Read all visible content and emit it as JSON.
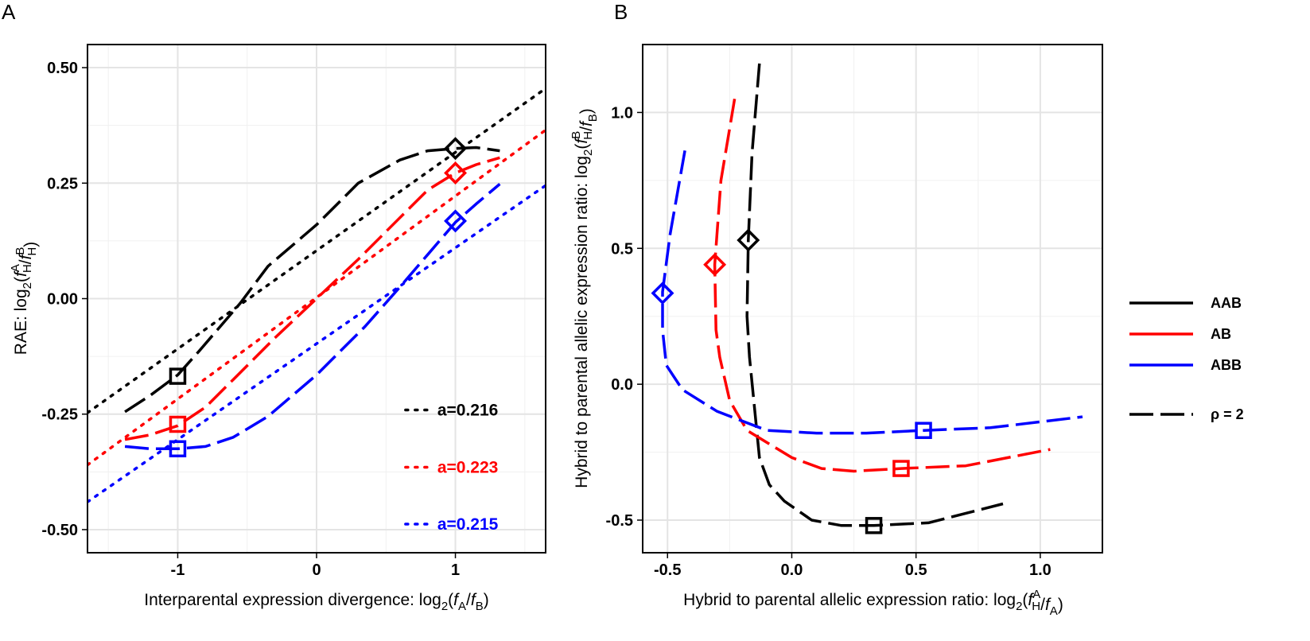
{
  "chart_data": [
    {
      "panel": "A",
      "type": "line",
      "xlabel": "Interparental expression divergence: log2(fA/fB)",
      "ylabel": "RAE: log2(fHA/fHB)",
      "xlim": [
        -1.65,
        1.65
      ],
      "ylim": [
        -0.55,
        0.55
      ],
      "xticks": [
        -1,
        0,
        1
      ],
      "xtick_labels": [
        "-1",
        "0",
        "1"
      ],
      "yticks": [
        -0.5,
        -0.25,
        0,
        0.25,
        0.5
      ],
      "ytick_labels": [
        "-0.50",
        "-0.25",
        "0.00",
        "0.25",
        "0.50"
      ],
      "grid": true,
      "series": [
        {
          "name": "AAB",
          "color": "#000000",
          "style": "dashed",
          "x": [
            -1.38,
            -1.2,
            -1.0,
            -0.85,
            -0.55,
            -0.35,
            0.0,
            0.3,
            0.6,
            0.8,
            1.0,
            1.15,
            1.32
          ],
          "y": [
            -0.245,
            -0.21,
            -0.165,
            -0.115,
            -0.01,
            0.07,
            0.16,
            0.25,
            0.3,
            0.32,
            0.325,
            0.327,
            0.32
          ]
        },
        {
          "name": "AB",
          "color": "#ff0000",
          "style": "dashed",
          "x": [
            -1.38,
            -1.2,
            -1.0,
            -0.8,
            -0.6,
            -0.3,
            0.0,
            0.3,
            0.6,
            0.8,
            1.0,
            1.15,
            1.32
          ],
          "y": [
            -0.305,
            -0.295,
            -0.275,
            -0.235,
            -0.175,
            -0.085,
            0.0,
            0.085,
            0.175,
            0.235,
            0.272,
            0.29,
            0.305
          ]
        },
        {
          "name": "ABB",
          "color": "#0000ff",
          "style": "dashed",
          "x": [
            -1.38,
            -1.2,
            -1.0,
            -0.8,
            -0.6,
            -0.35,
            0.0,
            0.35,
            0.6,
            0.8,
            1.0,
            1.15,
            1.32
          ],
          "y": [
            -0.32,
            -0.325,
            -0.325,
            -0.32,
            -0.3,
            -0.255,
            -0.165,
            -0.06,
            0.025,
            0.095,
            0.165,
            0.205,
            0.248
          ]
        },
        {
          "name": "a=0.216",
          "color": "#000000",
          "style": "dotted",
          "x": [
            -1.65,
            1.65
          ],
          "y": [
            -0.247,
            0.455
          ]
        },
        {
          "name": "a=0.223",
          "color": "#ff0000",
          "style": "dotted",
          "x": [
            -1.65,
            1.65
          ],
          "y": [
            -0.36,
            0.365
          ]
        },
        {
          "name": "a=0.215",
          "color": "#0000ff",
          "style": "dotted",
          "x": [
            -1.65,
            1.65
          ],
          "y": [
            -0.44,
            0.245
          ]
        }
      ],
      "markers": [
        {
          "shape": "square",
          "color": "#000000",
          "x": -1.0,
          "y": -0.168
        },
        {
          "shape": "square",
          "color": "#ff0000",
          "x": -1.0,
          "y": -0.272
        },
        {
          "shape": "square",
          "color": "#0000ff",
          "x": -1.0,
          "y": -0.325
        },
        {
          "shape": "diamond",
          "color": "#000000",
          "x": 1.0,
          "y": 0.325
        },
        {
          "shape": "diamond",
          "color": "#ff0000",
          "x": 1.0,
          "y": 0.272
        },
        {
          "shape": "diamond",
          "color": "#0000ff",
          "x": 1.0,
          "y": 0.168
        }
      ],
      "annotations": [
        {
          "text": "a=0.216",
          "color": "#000000",
          "x": 0.87,
          "y": -0.253
        },
        {
          "text": "a=0.223",
          "color": "#ff0000",
          "x": 0.87,
          "y": -0.377
        },
        {
          "text": "a=0.215",
          "color": "#0000ff",
          "x": 0.87,
          "y": -0.5
        }
      ]
    },
    {
      "panel": "B",
      "type": "line",
      "xlabel": "Hybrid to parental allelic expression ratio: log2(fHA/fA)",
      "ylabel": "Hybrid to parental allelic expression ratio: log2(fHB/fB)",
      "xlim": [
        -0.6,
        1.25
      ],
      "ylim": [
        -0.62,
        1.25
      ],
      "xticks": [
        -0.5,
        0,
        0.5,
        1.0
      ],
      "xtick_labels": [
        "-0.5",
        "0.0",
        "0.5",
        "1.0"
      ],
      "yticks": [
        -0.5,
        0,
        0.5,
        1.0
      ],
      "ytick_labels": [
        "-0.5",
        "0.0",
        "0.5",
        "1.0"
      ],
      "grid": true,
      "series": [
        {
          "name": "AAB",
          "color": "#000000",
          "style": "dashed",
          "x": [
            -0.13,
            -0.16,
            -0.175,
            -0.18,
            -0.17,
            -0.13,
            -0.09,
            -0.03,
            0.08,
            0.2,
            0.33,
            0.55,
            0.85
          ],
          "y": [
            1.18,
            0.85,
            0.53,
            0.25,
            0.1,
            -0.27,
            -0.37,
            -0.43,
            -0.5,
            -0.52,
            -0.52,
            -0.51,
            -0.44
          ]
        },
        {
          "name": "AB",
          "color": "#ff0000",
          "style": "dashed",
          "x": [
            -0.23,
            -0.285,
            -0.31,
            -0.305,
            -0.29,
            -0.25,
            -0.18,
            0.0,
            0.12,
            0.25,
            0.44,
            0.7,
            1.04
          ],
          "y": [
            1.05,
            0.75,
            0.44,
            0.2,
            0.1,
            -0.06,
            -0.17,
            -0.27,
            -0.31,
            -0.32,
            -0.31,
            -0.3,
            -0.24
          ]
        },
        {
          "name": "ABB",
          "color": "#0000ff",
          "style": "dashed",
          "x": [
            -0.43,
            -0.49,
            -0.52,
            -0.52,
            -0.505,
            -0.44,
            -0.3,
            -0.1,
            0.1,
            0.3,
            0.53,
            0.8,
            1.17
          ],
          "y": [
            0.86,
            0.55,
            0.34,
            0.2,
            0.07,
            -0.02,
            -0.1,
            -0.17,
            -0.18,
            -0.18,
            -0.17,
            -0.16,
            -0.12
          ]
        }
      ],
      "markers": [
        {
          "shape": "diamond",
          "color": "#000000",
          "x": -0.175,
          "y": 0.53
        },
        {
          "shape": "diamond",
          "color": "#ff0000",
          "x": -0.31,
          "y": 0.44
        },
        {
          "shape": "diamond",
          "color": "#0000ff",
          "x": -0.52,
          "y": 0.335
        },
        {
          "shape": "square",
          "color": "#000000",
          "x": 0.33,
          "y": -0.52
        },
        {
          "shape": "square",
          "color": "#ff0000",
          "x": 0.44,
          "y": -0.31
        },
        {
          "shape": "square",
          "color": "#0000ff",
          "x": 0.53,
          "y": -0.17
        }
      ],
      "legend": {
        "placement": "right",
        "items": [
          {
            "label": "AAB",
            "color": "#000000",
            "style": "solid"
          },
          {
            "label": "AB",
            "color": "#ff0000",
            "style": "solid"
          },
          {
            "label": "ABB",
            "color": "#0000ff",
            "style": "solid"
          },
          {
            "label": "ρ =  2",
            "color": "#000000",
            "style": "dashed"
          }
        ]
      }
    }
  ]
}
